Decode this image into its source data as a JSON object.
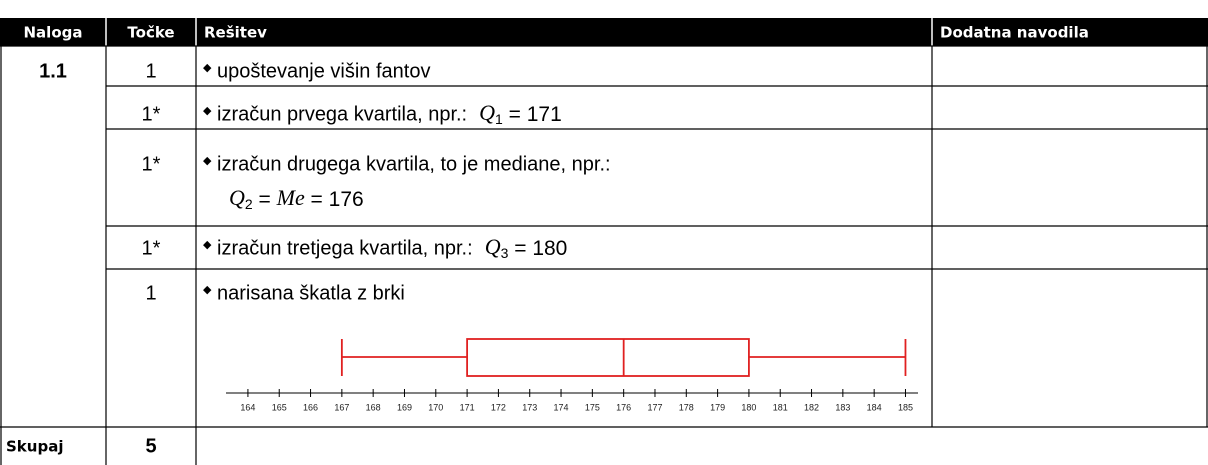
{
  "header": [
    "Naloga",
    "Točke",
    "Rešitev",
    "Dodatna navodila"
  ],
  "task": "1.1",
  "rows": [
    {
      "points": "1",
      "text": "upoštevanje višin fantov"
    },
    {
      "points": "1*",
      "text": "izračun prvega kvartila, npr.:",
      "formula": [
        {
          "t": "Q",
          "i": true
        },
        {
          "t": "1",
          "sub": true
        },
        {
          "t": " = "
        },
        {
          "t": "171"
        }
      ]
    },
    {
      "points": "1*",
      "text": "izračun drugega kvartila, to je mediane, npr.:",
      "formula2": [
        {
          "t": "Q",
          "i": true
        },
        {
          "t": "2",
          "sub": true
        },
        {
          "t": " = "
        },
        {
          "t": "Me",
          "i": true
        },
        {
          "t": " = "
        },
        {
          "t": "176"
        }
      ]
    },
    {
      "points": "1*",
      "text": "izračun tretjega kvartila, npr.:",
      "formula": [
        {
          "t": "Q",
          "i": true
        },
        {
          "t": "3",
          "sub": true
        },
        {
          "t": " = "
        },
        {
          "t": "180"
        }
      ]
    },
    {
      "points": "1",
      "text": "narisana škatla z brki"
    }
  ],
  "total_label": "Skupaj",
  "total": "5",
  "boxplot": {
    "type": "box",
    "color": "#e02020",
    "min": 167,
    "q1": 171,
    "median": 176,
    "q3": 180,
    "max": 185,
    "xlim": [
      163.3,
      185.4
    ],
    "xticks": [
      164,
      165,
      166,
      167,
      168,
      169,
      170,
      171,
      172,
      173,
      174,
      175,
      176,
      177,
      178,
      179,
      180,
      181,
      182,
      183,
      184,
      185
    ]
  }
}
